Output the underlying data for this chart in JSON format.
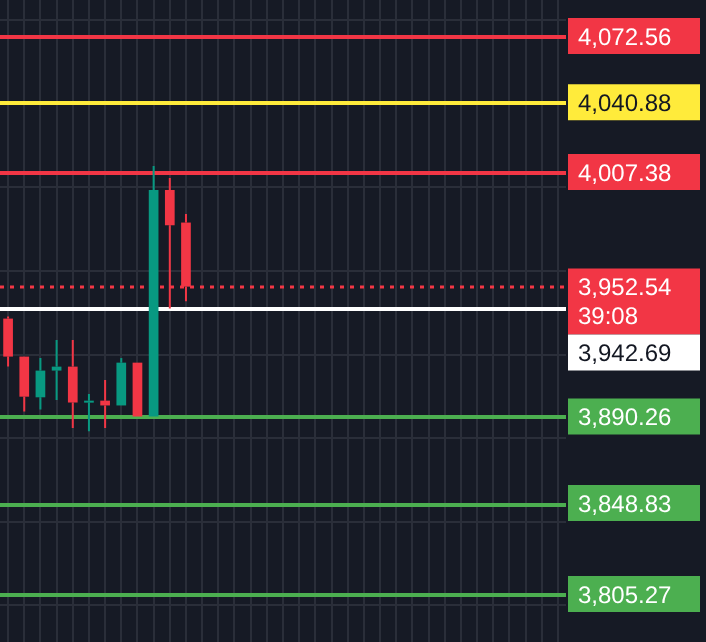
{
  "chart_data": {
    "type": "candlestick",
    "categories": [
      null,
      null,
      null,
      null,
      null,
      null,
      null,
      null,
      null,
      null,
      null,
      null,
      null,
      null,
      null,
      null,
      null,
      null,
      null,
      null,
      null,
      null,
      null,
      null,
      null,
      null,
      null,
      null,
      null,
      null,
      null,
      null,
      null,
      null,
      null
    ],
    "ohlc": [
      [
        3937.2,
        3938.2,
        3914.2,
        3919.0
      ],
      [
        3919.0,
        3919.0,
        3892.7,
        3899.8
      ],
      [
        3899.5,
        3918.3,
        3893.7,
        3912.3
      ],
      [
        3912.3,
        3926.9,
        3898.2,
        3914.2
      ],
      [
        3914.2,
        3926.9,
        3884.8,
        3897.0
      ],
      [
        3897.0,
        3901.1,
        3883.2,
        3897.9
      ],
      [
        3897.9,
        3907.8,
        3884.8,
        3895.6
      ],
      [
        3895.6,
        3918.3,
        3895.6,
        3916.1
      ],
      [
        3916.1,
        3916.1,
        3890.3,
        3890.3
      ],
      [
        3890.3,
        4010.3,
        3890.3,
        3998.8
      ],
      [
        3998.8,
        4004.6,
        3942.0,
        3981.9
      ],
      [
        3983.2,
        3987.3,
        3945.5,
        3952.5
      ],
      null,
      null,
      null,
      null,
      null,
      null,
      null,
      null,
      null,
      null,
      null,
      null,
      null,
      null,
      null,
      null,
      null,
      null,
      null,
      null,
      null,
      null,
      null
    ],
    "colors": [
      "#f23645",
      "#f23645",
      "#089981",
      "#089981",
      "#f23645",
      "#089981",
      "#f23645",
      "#089981",
      "#f23645",
      "#089981",
      "#f23645",
      "#f23645",
      null,
      null,
      null,
      null,
      null,
      null,
      null,
      null,
      null,
      null,
      null,
      null,
      null,
      null,
      null,
      null,
      null,
      null,
      null,
      null,
      null,
      null,
      null
    ],
    "ylim": [
      3782.3,
      4089.8
    ],
    "yticks": [
      {
        "value": 4080,
        "label": null
      },
      {
        "value": 4040,
        "label": null
      },
      {
        "value": 4000,
        "label": null
      },
      {
        "value": 3960,
        "label": null
      },
      {
        "value": 3920,
        "label": null
      },
      {
        "value": 3880,
        "label": null
      },
      {
        "value": 3840,
        "label": null
      },
      {
        "value": 3800,
        "label": null
      }
    ],
    "grid": true,
    "ref_lines": [
      {
        "axis": "y",
        "value": 4072.56,
        "label": "4,072.56",
        "color": "#f23645",
        "line_style": "solid"
      },
      {
        "axis": "y",
        "value": 4040.88,
        "label": "4,040.88",
        "color": "#ffeb3b",
        "line_style": "solid"
      },
      {
        "axis": "y",
        "value": 4007.38,
        "label": "4,007.38",
        "color": "#f23645",
        "line_style": "solid"
      },
      {
        "axis": "y",
        "value": 3952.54,
        "label": "3,952.54",
        "color": "#f23645",
        "line_style": "dotted"
      },
      {
        "axis": "y",
        "value": 3942.69,
        "label": "3,942.69",
        "color": "#ffffff",
        "line_style": "solid"
      },
      {
        "axis": "y",
        "value": 3890.26,
        "label": "3,890.26",
        "color": "#4caf50",
        "line_style": "solid"
      },
      {
        "axis": "y",
        "value": 3848.83,
        "label": "3,848.83",
        "color": "#4caf50",
        "line_style": "solid"
      },
      {
        "axis": "y",
        "value": 3805.27,
        "label": "3,805.27",
        "color": "#4caf50",
        "line_style": "solid"
      }
    ],
    "annotations": [
      "39:08"
    ]
  }
}
